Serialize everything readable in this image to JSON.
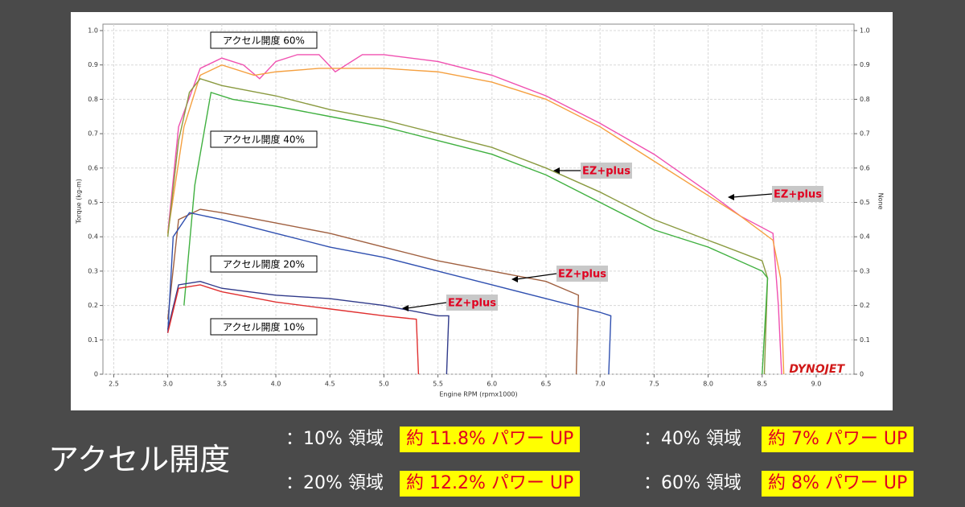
{
  "chart_data": {
    "type": "line",
    "xlabel": "Engine RPM (rpmx1000)",
    "ylabel": "Torque (kg-m)",
    "y2label": "None",
    "xlim": [
      2.4,
      9.35
    ],
    "ylim": [
      0,
      1.0
    ],
    "y2lim": [
      0,
      1.0
    ],
    "xticks": [
      2.5,
      {
        "value": 3,
        "label": "3.0"
      },
      3.5,
      {
        "value": 4,
        "label": "4.0"
      },
      4.5,
      {
        "value": 5,
        "label": "5.0"
      },
      5.5,
      {
        "value": 6,
        "label": "6.0"
      },
      6.5,
      {
        "value": 7,
        "label": "7.0"
      },
      7.5,
      {
        "value": 8,
        "label": "8.0"
      },
      8.5,
      {
        "value": 9,
        "label": "9.0"
      }
    ],
    "yticks": [
      0,
      0.1,
      0.2,
      0.3,
      0.4,
      0.5,
      0.6,
      0.7,
      0.8,
      0.9,
      {
        "value": 1,
        "label": "1.0"
      }
    ],
    "y2ticks": [
      0,
      0.1,
      0.2,
      0.3,
      0.4,
      0.5,
      0.6,
      0.7,
      0.8,
      0.9,
      {
        "value": 1,
        "label": "1.0"
      }
    ],
    "grid": true,
    "series": [
      {
        "color": "#f050b0",
        "x": [
          3.0,
          3.1,
          3.3,
          3.5,
          3.7,
          3.85,
          4.0,
          4.2,
          4.4,
          4.55,
          4.8,
          5.0,
          5.5,
          6.0,
          6.5,
          7.0,
          7.5,
          8.0,
          8.3,
          8.6,
          8.65,
          8.68
        ],
        "values": [
          0.41,
          0.72,
          0.89,
          0.92,
          0.9,
          0.86,
          0.91,
          0.93,
          0.93,
          0.88,
          0.93,
          0.93,
          0.91,
          0.87,
          0.81,
          0.73,
          0.64,
          0.53,
          0.46,
          0.41,
          0.2,
          0.0
        ]
      },
      {
        "color": "#f5a040",
        "x": [
          3.0,
          3.15,
          3.3,
          3.5,
          3.8,
          4.0,
          4.4,
          4.8,
          5.0,
          5.5,
          6.0,
          6.5,
          7.0,
          7.5,
          8.0,
          8.3,
          8.6,
          8.67,
          8.7
        ],
        "values": [
          0.41,
          0.72,
          0.87,
          0.9,
          0.87,
          0.88,
          0.89,
          0.89,
          0.89,
          0.88,
          0.85,
          0.8,
          0.72,
          0.62,
          0.52,
          0.46,
          0.39,
          0.28,
          0.0
        ]
      },
      {
        "color": "#8a9a40",
        "x": [
          3.0,
          3.1,
          3.2,
          3.3,
          3.5,
          4.0,
          4.5,
          5.0,
          5.5,
          6.0,
          6.5,
          7.0,
          7.5,
          8.0,
          8.5,
          8.55,
          8.52
        ],
        "values": [
          0.4,
          0.68,
          0.82,
          0.86,
          0.84,
          0.81,
          0.77,
          0.74,
          0.7,
          0.66,
          0.6,
          0.53,
          0.45,
          0.39,
          0.33,
          0.28,
          0.0
        ]
      },
      {
        "color": "#40b040",
        "x": [
          3.15,
          3.25,
          3.4,
          3.6,
          4.0,
          4.5,
          5.0,
          5.5,
          6.0,
          6.5,
          7.0,
          7.5,
          8.0,
          8.5,
          8.55,
          8.5
        ],
        "values": [
          0.2,
          0.55,
          0.82,
          0.8,
          0.78,
          0.75,
          0.72,
          0.68,
          0.64,
          0.58,
          0.5,
          0.42,
          0.37,
          0.3,
          0.28,
          0.0
        ]
      },
      {
        "color": "#a06040",
        "x": [
          3.0,
          3.1,
          3.3,
          3.5,
          4.0,
          4.5,
          5.0,
          5.5,
          6.0,
          6.5,
          6.8,
          6.78
        ],
        "values": [
          0.16,
          0.45,
          0.48,
          0.47,
          0.44,
          0.41,
          0.37,
          0.33,
          0.3,
          0.27,
          0.23,
          0.0
        ]
      },
      {
        "color": "#3050b0",
        "x": [
          3.0,
          3.05,
          3.2,
          3.5,
          4.0,
          4.5,
          5.0,
          5.5,
          6.0,
          6.5,
          7.0,
          7.1,
          7.08
        ],
        "values": [
          0.12,
          0.4,
          0.47,
          0.45,
          0.41,
          0.37,
          0.34,
          0.3,
          0.26,
          0.22,
          0.18,
          0.17,
          0.0
        ]
      },
      {
        "color": "#303a8a",
        "x": [
          3.0,
          3.1,
          3.3,
          3.5,
          4.0,
          4.5,
          5.0,
          5.5,
          5.6,
          5.58
        ],
        "values": [
          0.13,
          0.26,
          0.27,
          0.25,
          0.23,
          0.22,
          0.2,
          0.17,
          0.17,
          0.0
        ]
      },
      {
        "color": "#e03030",
        "x": [
          3.0,
          3.1,
          3.3,
          3.5,
          4.0,
          4.5,
          5.0,
          5.3,
          5.32
        ],
        "values": [
          0.12,
          0.25,
          0.26,
          0.24,
          0.21,
          0.19,
          0.17,
          0.16,
          0.0
        ]
      }
    ],
    "annotations": [
      "アクセル開度 60%",
      "アクセル開度 40%",
      "アクセル開度 20%",
      "アクセル開度 10%",
      "EZ+plus",
      "EZ+plus",
      "EZ+plus",
      "EZ+plus"
    ],
    "logo": "DYNOJET"
  },
  "summary": {
    "title": "アクセル開度",
    "rows": [
      {
        "label": "：10% 領域",
        "value": "約 11.8% パワー UP"
      },
      {
        "label": "：20% 領域",
        "value": "約 12.2% パワー UP"
      },
      {
        "label": "：40% 領域",
        "value": "約 7% パワー UP"
      },
      {
        "label": "：60% 領域",
        "value": "約 8% パワー UP"
      }
    ]
  }
}
